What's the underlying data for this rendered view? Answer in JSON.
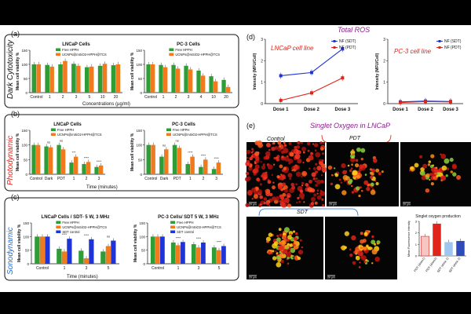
{
  "colors": {
    "green": "#2e9d35",
    "orange": "#ef7b1e",
    "blue": "#1f34d6",
    "red": "#e0241b",
    "lightblue": "#9fc6f0",
    "navy": "#2d4bbb",
    "purple": "#8a1d8d",
    "gray": "#777777",
    "black": "#111111"
  },
  "panel_a": {
    "letter": "(a)",
    "side_label": "Dark Cytotoxicity",
    "xlabel": "Concentrations (µg/ml)",
    "legend": [
      "Free HPPH",
      "UCNPs@mSiO2-HPPH@TCS"
    ],
    "sig_labels": [
      "ns",
      "ns",
      "ns",
      "ns",
      "**",
      "*",
      "***",
      "****"
    ]
  },
  "panel_b": {
    "letter": "(b)",
    "side_label": "Photodynamic",
    "xlabel": "Time (minutes)",
    "legend": [
      "Free HPPH",
      "UCNPs@mSiO2-HPPH@TCS"
    ],
    "sig_labels": [
      "ns",
      "ns",
      "***",
      "****",
      "****",
      "ns",
      "ns",
      "****",
      "****",
      "****"
    ]
  },
  "panel_c": {
    "letter": "(c)",
    "side_label": "Sonodynamic",
    "xlabel": "Time (minutes)",
    "legend": [
      "Free HPPH",
      "UCNPs@mSiO2-HPPH@TCS",
      "SDT control"
    ],
    "sig_labels": [
      "****",
      "****",
      "ns",
      "****",
      "****",
      "****"
    ]
  },
  "panel_d": {
    "letter": "(d)",
    "title": "Total ROS",
    "left_label": "LNCaP cell line",
    "right_label": "PC-3 cell line"
  },
  "panel_e": {
    "letter": "(e)",
    "title": "Singlet Oxygen in LNCaP",
    "control": "Control",
    "pdt": "PDT",
    "sdt": "SDT",
    "scale_bar": "20 µm"
  },
  "chart_data": [
    {
      "id": "a-left",
      "type": "bar",
      "title": "LNCaP Cells",
      "xlabel": "Concentrations (µg/ml)",
      "ylabel": "Mean cell viability %",
      "ylim": [
        0,
        150
      ],
      "yticks": [
        0,
        50,
        100,
        150
      ],
      "categories": [
        "Control",
        "1",
        "2",
        "3",
        "5",
        "10",
        "20"
      ],
      "series": [
        {
          "name": "Free HPPH",
          "values": [
            100,
            98,
            100,
            102,
            90,
            95,
            97
          ]
        },
        {
          "name": "UCNPs@mSiO2-HPPH@TCS",
          "values": [
            100,
            92,
            112,
            95,
            92,
            102,
            100
          ]
        }
      ]
    },
    {
      "id": "a-right",
      "type": "bar",
      "title": "PC-3 Cells",
      "xlabel": "Concentrations (µg/ml)",
      "ylabel": "Mean cell viability %",
      "ylim": [
        0,
        150
      ],
      "yticks": [
        0,
        50,
        100,
        150
      ],
      "categories": [
        "Control",
        "1",
        "2",
        "3",
        "4",
        "10",
        "20"
      ],
      "series": [
        {
          "name": "Free HPPH",
          "values": [
            100,
            98,
            98,
            95,
            78,
            58,
            45
          ]
        },
        {
          "name": "UCNPs@mSiO2-HPPH@TCS",
          "values": [
            100,
            90,
            85,
            82,
            60,
            40,
            20
          ]
        }
      ]
    },
    {
      "id": "b-left",
      "type": "bar",
      "title": "LNCaP Cells",
      "xlabel": "Time (minutes)",
      "ylabel": "Mean cell viability %",
      "ylim": [
        0,
        150
      ],
      "yticks": [
        0,
        50,
        100,
        150
      ],
      "categories": [
        "Control",
        "Dark",
        "PDT",
        "1",
        "2",
        "3"
      ],
      "series": [
        {
          "name": "Free HPPH",
          "values": [
            100,
            95,
            100,
            40,
            35,
            25
          ]
        },
        {
          "name": "UCNPs@mSiO2-HPPH@TCS",
          "values": [
            100,
            92,
            85,
            60,
            42,
            30
          ]
        }
      ]
    },
    {
      "id": "b-right",
      "type": "bar",
      "title": "PC-3 Cells",
      "xlabel": "Time (minutes)",
      "ylabel": "Mean cell viability %",
      "ylim": [
        0,
        150
      ],
      "yticks": [
        0,
        50,
        100,
        150
      ],
      "categories": [
        "Control",
        "Dark",
        "PDT",
        "1",
        "2",
        "3"
      ],
      "series": [
        {
          "name": "Free HPPH",
          "values": [
            100,
            60,
            100,
            35,
            25,
            18
          ]
        },
        {
          "name": "UCNPs@mSiO2-HPPH@TCS",
          "values": [
            100,
            85,
            90,
            60,
            50,
            40
          ]
        }
      ]
    },
    {
      "id": "c-left",
      "type": "bar",
      "title": "LNCaP Cells / SDT- 5 W, 3 MHz",
      "xlabel": "Time (minutes)",
      "ylabel": "Mean cell viability %",
      "ylim": [
        0,
        150
      ],
      "yticks": [
        0,
        50,
        100,
        150
      ],
      "categories": [
        "Control",
        "1",
        "3",
        "5"
      ],
      "series": [
        {
          "name": "Free HPPH",
          "values": [
            100,
            55,
            48,
            45
          ]
        },
        {
          "name": "UCNPs@mSiO2-HPPH@TCS",
          "values": [
            100,
            45,
            20,
            65
          ]
        },
        {
          "name": "SDT control",
          "values": [
            100,
            92,
            90,
            85
          ]
        }
      ]
    },
    {
      "id": "c-right",
      "type": "bar",
      "title": "PC-3 Cells/ SDT 5 W, 3 MHz",
      "xlabel": "Time (minutes)",
      "ylabel": "Mean cell viability %",
      "ylim": [
        0,
        150
      ],
      "yticks": [
        0,
        50,
        100,
        150
      ],
      "categories": [
        "Control",
        "1",
        "3",
        "5"
      ],
      "series": [
        {
          "name": "Free HPPH",
          "values": [
            100,
            78,
            72,
            60
          ]
        },
        {
          "name": "UCNPs@mSiO2-HPPH@TCS",
          "values": [
            100,
            68,
            60,
            50
          ]
        },
        {
          "name": "SDT control",
          "values": [
            100,
            80,
            78,
            65
          ]
        }
      ]
    },
    {
      "id": "d-left",
      "type": "line",
      "title": "LNCaP cell line",
      "ylabel": "Intensity (MFU/Cell)",
      "ylim": [
        0,
        3
      ],
      "yticks": [
        0,
        1,
        2,
        3
      ],
      "categories": [
        "Dose 1",
        "Dose 2",
        "Dose 3"
      ],
      "series": [
        {
          "name": "NF (SDT)",
          "values": [
            1.3,
            1.45,
            2.55
          ]
        },
        {
          "name": "NF (PDT)",
          "values": [
            0.15,
            0.5,
            1.2
          ]
        }
      ]
    },
    {
      "id": "d-right",
      "type": "line",
      "title": "PC-3 cell line",
      "ylabel": "Intensity (MFU/Cell)",
      "ylim": [
        0,
        3
      ],
      "yticks": [
        0,
        1,
        2,
        3
      ],
      "categories": [
        "Dose 1",
        "Dose 2",
        "Dose 3"
      ],
      "series": [
        {
          "name": "NF (SDT)",
          "values": [
            0.08,
            0.12,
            0.1
          ]
        },
        {
          "name": "NF (PDT)",
          "values": [
            0.05,
            0.1,
            0.08
          ]
        }
      ]
    },
    {
      "id": "e-bar",
      "type": "bar",
      "title": "Singlet oxygen production",
      "ylabel": "Mean Fluorescence Intensity",
      "ylim": [
        0,
        3
      ],
      "yticks": [
        0,
        1,
        2,
        3
      ],
      "categories": [
        "PDT (dose1)",
        "PDT (dose2)",
        "SDT (dose 1)",
        "SDT (dose 2)"
      ],
      "values": [
        1.7,
        2.8,
        1.2,
        1.3
      ]
    }
  ]
}
